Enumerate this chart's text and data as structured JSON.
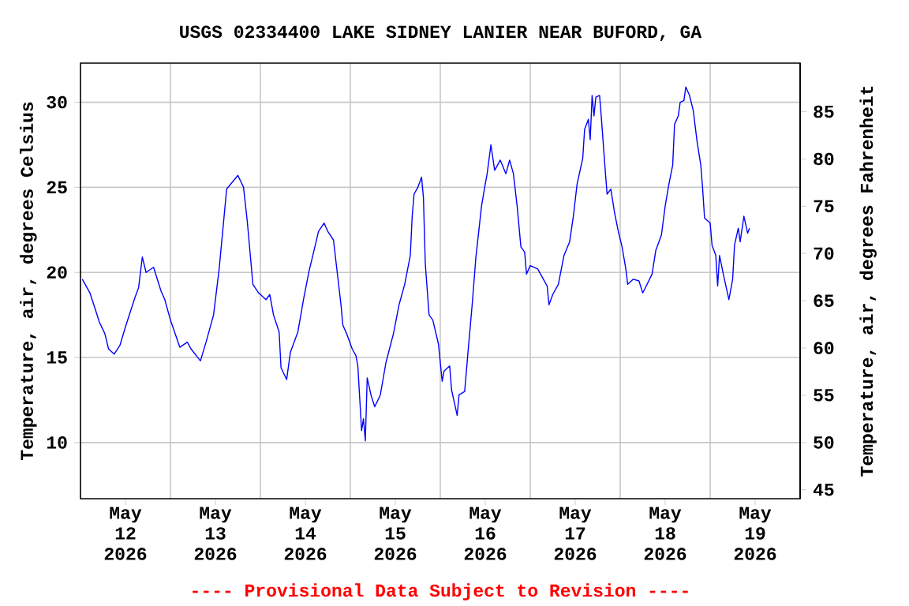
{
  "chart_data": {
    "type": "line",
    "title": "USGS 02334400 LAKE SIDNEY LANIER NEAR BUFORD, GA",
    "ylabel": "Temperature, air, degrees Celsius",
    "y2label": "Temperature, air, degrees Fahrenheit",
    "annotations": [
      "---- Provisional Data Subject to Revision ----"
    ],
    "x": [
      "2026-05-12T00:30",
      "2026-05-12T02:30",
      "2026-05-12T04:00",
      "2026-05-12T05:00",
      "2026-05-12T06:30",
      "2026-05-12T07:30",
      "2026-05-12T09:00",
      "2026-05-12T10:30",
      "2026-05-12T12:00",
      "2026-05-12T14:30",
      "2026-05-12T15:30",
      "2026-05-12T16:30",
      "2026-05-12T17:30",
      "2026-05-12T19:30",
      "2026-05-12T21:30",
      "2026-05-12T22:30",
      "2026-05-13T00:00",
      "2026-05-13T02:30",
      "2026-05-13T04:30",
      "2026-05-13T05:30",
      "2026-05-13T08:00",
      "2026-05-13T09:30",
      "2026-05-13T11:30",
      "2026-05-13T13:00",
      "2026-05-13T15:00",
      "2026-05-13T16:30",
      "2026-05-13T18:00",
      "2026-05-13T19:30",
      "2026-05-13T20:30",
      "2026-05-13T22:00",
      "2026-05-13T23:30",
      "2026-05-14T01:30",
      "2026-05-14T02:30",
      "2026-05-14T03:30",
      "2026-05-14T05:00",
      "2026-05-14T05:30",
      "2026-05-14T07:00",
      "2026-05-14T08:00",
      "2026-05-14T10:00",
      "2026-05-14T11:30",
      "2026-05-14T13:00",
      "2026-05-14T14:00",
      "2026-05-14T15:30",
      "2026-05-14T17:00",
      "2026-05-14T18:00",
      "2026-05-14T19:30",
      "2026-05-14T20:30",
      "2026-05-14T21:30",
      "2026-05-14T22:00",
      "2026-05-14T23:00",
      "2026-05-15T00:30",
      "2026-05-15T01:30",
      "2026-05-15T02:00",
      "2026-05-15T03:00",
      "2026-05-15T03:30",
      "2026-05-15T04:00",
      "2026-05-15T04:30",
      "2026-05-15T05:30",
      "2026-05-15T06:30",
      "2026-05-15T08:00",
      "2026-05-15T09:30",
      "2026-05-15T11:30",
      "2026-05-15T13:00",
      "2026-05-15T14:30",
      "2026-05-15T16:00",
      "2026-05-15T16:30",
      "2026-05-15T17:00",
      "2026-05-15T18:00",
      "2026-05-15T19:00",
      "2026-05-15T19:30",
      "2026-05-15T20:00",
      "2026-05-15T21:00",
      "2026-05-15T22:00",
      "2026-05-15T23:30",
      "2026-05-16T00:30",
      "2026-05-16T01:00",
      "2026-05-16T02:30",
      "2026-05-16T03:00",
      "2026-05-16T04:30",
      "2026-05-16T05:00",
      "2026-05-16T06:30",
      "2026-05-16T07:30",
      "2026-05-16T08:30",
      "2026-05-16T09:30",
      "2026-05-16T11:00",
      "2026-05-16T12:00",
      "2026-05-16T12:30",
      "2026-05-16T13:30",
      "2026-05-16T14:30",
      "2026-05-16T16:00",
      "2026-05-16T17:30",
      "2026-05-16T18:30",
      "2026-05-16T19:30",
      "2026-05-16T20:30",
      "2026-05-16T21:30",
      "2026-05-16T22:30",
      "2026-05-16T23:00",
      "2026-05-17T00:00",
      "2026-05-17T02:00",
      "2026-05-17T03:30",
      "2026-05-17T04:30",
      "2026-05-17T05:00",
      "2026-05-17T06:00",
      "2026-05-17T07:30",
      "2026-05-17T09:00",
      "2026-05-17T10:30",
      "2026-05-17T11:30",
      "2026-05-17T12:30",
      "2026-05-17T14:00",
      "2026-05-17T14:30",
      "2026-05-17T15:30",
      "2026-05-17T16:00",
      "2026-05-17T16:30",
      "2026-05-17T17:00",
      "2026-05-17T17:30",
      "2026-05-17T18:30",
      "2026-05-17T19:00",
      "2026-05-17T20:00",
      "2026-05-17T20:30",
      "2026-05-17T21:30",
      "2026-05-17T22:30",
      "2026-05-17T23:30",
      "2026-05-18T00:30",
      "2026-05-18T01:30",
      "2026-05-18T02:00",
      "2026-05-18T03:30",
      "2026-05-18T05:00",
      "2026-05-18T06:00",
      "2026-05-18T06:30",
      "2026-05-18T08:30",
      "2026-05-18T09:30",
      "2026-05-18T11:00",
      "2026-05-18T12:00",
      "2026-05-18T13:00",
      "2026-05-18T14:00",
      "2026-05-18T14:30",
      "2026-05-18T15:30",
      "2026-05-18T16:00",
      "2026-05-18T17:00",
      "2026-05-18T17:30",
      "2026-05-18T18:30",
      "2026-05-18T19:30",
      "2026-05-18T20:30",
      "2026-05-18T21:30",
      "2026-05-18T22:00",
      "2026-05-18T22:30",
      "2026-05-19T00:00",
      "2026-05-19T00:30",
      "2026-05-19T01:30",
      "2026-05-19T02:00",
      "2026-05-19T02:30",
      "2026-05-19T03:30",
      "2026-05-19T04:30",
      "2026-05-19T05:00",
      "2026-05-19T06:00",
      "2026-05-19T06:30",
      "2026-05-19T07:30",
      "2026-05-19T08:00",
      "2026-05-19T09:00",
      "2026-05-19T10:00",
      "2026-05-19T10:30"
    ],
    "series": [
      {
        "color": "#0000ff",
        "line_style": "solid",
        "values": [
          19.6,
          18.8,
          17.8,
          17.1,
          16.4,
          15.5,
          15.2,
          15.7,
          16.8,
          18.5,
          19.1,
          20.9,
          20.0,
          20.3,
          18.9,
          18.4,
          17.2,
          15.6,
          15.9,
          15.5,
          14.8,
          15.9,
          17.5,
          20.2,
          24.9,
          25.3,
          25.7,
          25.0,
          23.0,
          19.3,
          18.8,
          18.4,
          18.7,
          17.5,
          16.5,
          14.4,
          13.7,
          15.3,
          16.5,
          18.4,
          20.1,
          21.0,
          22.4,
          22.9,
          22.4,
          21.9,
          20.0,
          18.1,
          16.9,
          16.4,
          15.5,
          15.1,
          14.5,
          10.7,
          11.4,
          10.1,
          13.8,
          12.8,
          12.1,
          12.8,
          14.7,
          16.4,
          18.1,
          19.3,
          21.0,
          23.3,
          24.6,
          25.0,
          25.6,
          24.4,
          20.5,
          17.5,
          17.2,
          15.8,
          13.6,
          14.2,
          14.5,
          13.1,
          11.6,
          12.8,
          13.0,
          15.6,
          18.1,
          20.9,
          23.9,
          25.2,
          25.8,
          27.5,
          26.0,
          26.6,
          25.8,
          26.6,
          25.8,
          23.9,
          21.5,
          21.2,
          19.9,
          20.4,
          20.2,
          19.6,
          19.2,
          18.1,
          18.7,
          19.3,
          21.0,
          21.8,
          23.3,
          25.2,
          26.7,
          28.4,
          29.0,
          27.8,
          30.4,
          29.2,
          30.3,
          30.4,
          29.0,
          26.0,
          24.6,
          24.9,
          23.5,
          22.4,
          21.5,
          20.2,
          19.3,
          19.6,
          19.5,
          18.8,
          19.0,
          19.9,
          21.3,
          22.2,
          23.9,
          25.2,
          26.3,
          28.7,
          29.2,
          30.0,
          30.1,
          30.9,
          30.4,
          29.5,
          27.7,
          26.3,
          24.9,
          23.2,
          22.9,
          21.6,
          21.0,
          19.2,
          21.0,
          19.9,
          18.9,
          18.4,
          19.6,
          21.6,
          22.6,
          21.8,
          23.3,
          22.3,
          22.6
        ]
      }
    ],
    "xlim": [
      "2026-05-12T00:00",
      "2026-05-20T00:00"
    ],
    "xticks": [
      {
        "value": "2026-05-12T12:00",
        "label": "May 12 2026"
      },
      {
        "value": "2026-05-13T12:00",
        "label": "May 13 2026"
      },
      {
        "value": "2026-05-14T12:00",
        "label": "May 14 2026"
      },
      {
        "value": "2026-05-15T12:00",
        "label": "May 15 2026"
      },
      {
        "value": "2026-05-16T12:00",
        "label": "May 16 2026"
      },
      {
        "value": "2026-05-17T12:00",
        "label": "May 17 2026"
      },
      {
        "value": "2026-05-18T12:00",
        "label": "May 18 2026"
      },
      {
        "value": "2026-05-19T12:00",
        "label": "May 19 2026"
      },
      {
        "value": "2026-05-13T00:00",
        "label": null
      },
      {
        "value": "2026-05-14T00:00",
        "label": null
      },
      {
        "value": "2026-05-15T00:00",
        "label": null
      },
      {
        "value": "2026-05-16T00:00",
        "label": null
      },
      {
        "value": "2026-05-17T00:00",
        "label": null
      },
      {
        "value": "2026-05-18T00:00",
        "label": null
      },
      {
        "value": "2026-05-19T00:00",
        "label": null
      }
    ],
    "ylim": [
      6.7,
      32.3
    ],
    "yticks": [
      10,
      15,
      20,
      25,
      30
    ],
    "y2lim": [
      44.06,
      90.14
    ],
    "y2ticks": [
      45,
      50,
      55,
      60,
      65,
      70,
      75,
      80,
      85
    ],
    "grid": true
  }
}
